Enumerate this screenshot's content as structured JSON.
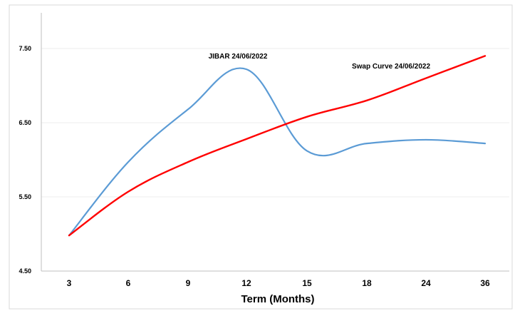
{
  "chart_data": {
    "type": "line",
    "title": "",
    "xlabel": "Term (Months)",
    "ylabel": "",
    "categories": [
      "3",
      "6",
      "9",
      "12",
      "15",
      "18",
      "24",
      "36"
    ],
    "ylim": [
      4.5,
      7.5
    ],
    "yticks": [
      "4.50",
      "5.50",
      "6.50",
      "7.50"
    ],
    "grid": true,
    "series": [
      {
        "name": "JIBAR  24/06/2022",
        "color": "#5b9bd5",
        "values": [
          4.98,
          5.97,
          6.68,
          7.22,
          6.12,
          6.22,
          6.27,
          6.22
        ]
      },
      {
        "name": "Swap Curve  24/06/2022",
        "color": "#ff0000",
        "values": [
          4.98,
          5.57,
          5.97,
          6.28,
          6.58,
          6.8,
          7.1,
          7.4
        ]
      }
    ]
  }
}
